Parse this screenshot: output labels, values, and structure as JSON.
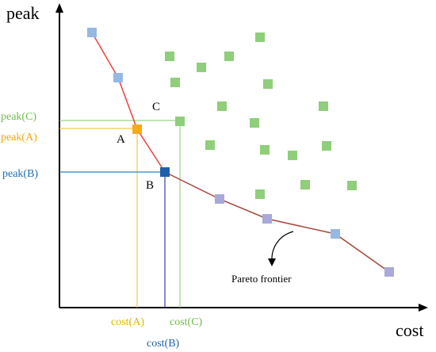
{
  "axes": {
    "y_title": "peak",
    "x_title": "cost"
  },
  "points": {
    "a_label": "A",
    "b_label": "B",
    "c_label": "C"
  },
  "y_labels": {
    "peak_c": "peak(C)",
    "peak_a": "peak(A)",
    "peak_b": "peak(B)"
  },
  "x_labels": {
    "cost_a": "cost(A)",
    "cost_c": "cost(C)",
    "cost_b": "cost(B)"
  },
  "annotation": {
    "pareto": "Pareto frontier"
  },
  "colors": {
    "axis": "#000000",
    "frontier_steep": "#e8433f",
    "frontier_flat": "#a4473c",
    "frontier_point": "#96b9e4",
    "frontier_point_late": "#a9a9dc",
    "dominated_point": "#8fce7a",
    "point_a": "#f5a91d",
    "point_b": "#1f5fa8",
    "guide_c": "#9ed187",
    "guide_a": "#f2c94c",
    "guide_b_h": "#2f80c1",
    "guide_b_v": "#3b3f9a",
    "label_c": "#6fb94c",
    "label_a": "#f2a900",
    "label_b": "#1c6fb5",
    "label_cost_a": "#e0b400",
    "label_cost_c": "#6fb94c",
    "label_cost_b": "#1f5fa8"
  }
}
